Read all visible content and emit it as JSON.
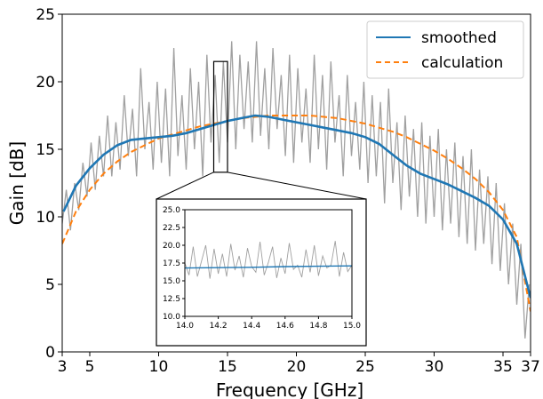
{
  "chart_data": {
    "type": "line",
    "xlabel": "Frequency [GHz]",
    "ylabel": "Gain [dB]",
    "xlim": [
      3,
      37
    ],
    "ylim": [
      0,
      25
    ],
    "xticks": [
      3,
      5,
      10,
      15,
      20,
      25,
      30,
      35,
      37
    ],
    "yticks": [
      0,
      5,
      10,
      15,
      20,
      25
    ],
    "grid": false,
    "legend_position": "top-right",
    "series": [
      {
        "name": "smoothed",
        "color": "#1f77b4",
        "style": "solid",
        "x": [
          3.1,
          4,
          5,
          6,
          7,
          8,
          9,
          10,
          11,
          12,
          13,
          14,
          15,
          16,
          17,
          18,
          19,
          20,
          21,
          22,
          23,
          24,
          25,
          26,
          27,
          28,
          29,
          30,
          31,
          32,
          33,
          34,
          35,
          36,
          37
        ],
        "y": [
          10.4,
          12.3,
          13.6,
          14.6,
          15.3,
          15.7,
          15.8,
          15.9,
          16.0,
          16.2,
          16.5,
          16.8,
          17.1,
          17.3,
          17.5,
          17.4,
          17.2,
          17.0,
          16.8,
          16.6,
          16.4,
          16.2,
          15.9,
          15.4,
          14.6,
          13.8,
          13.2,
          12.8,
          12.4,
          11.9,
          11.4,
          10.8,
          9.8,
          8.0,
          4.0
        ]
      },
      {
        "name": "calculation",
        "color": "#ff7f0e",
        "style": "dashed",
        "x": [
          3,
          4,
          5,
          6,
          7,
          8,
          9,
          10,
          11,
          12,
          13,
          14,
          15,
          16,
          17,
          18,
          19,
          20,
          21,
          22,
          23,
          24,
          25,
          26,
          27,
          28,
          29,
          30,
          31,
          32,
          33,
          34,
          35,
          36,
          37
        ],
        "y": [
          8.0,
          10.4,
          12.0,
          13.2,
          14.1,
          14.8,
          15.3,
          15.8,
          16.1,
          16.4,
          16.7,
          16.9,
          17.1,
          17.3,
          17.4,
          17.5,
          17.5,
          17.5,
          17.5,
          17.4,
          17.3,
          17.1,
          16.9,
          16.6,
          16.3,
          15.9,
          15.4,
          14.9,
          14.3,
          13.6,
          12.8,
          11.8,
          10.5,
          8.5,
          3.0
        ]
      },
      {
        "name": "",
        "color": "#a0a0a0",
        "style": "solid",
        "x": [
          3.0,
          3.3,
          3.6,
          3.9,
          4.2,
          4.5,
          4.8,
          5.1,
          5.4,
          5.7,
          6.0,
          6.3,
          6.6,
          6.9,
          7.2,
          7.5,
          7.8,
          8.1,
          8.4,
          8.7,
          9.0,
          9.3,
          9.6,
          9.9,
          10.2,
          10.5,
          10.8,
          11.1,
          11.4,
          11.7,
          12.0,
          12.3,
          12.6,
          12.9,
          13.2,
          13.5,
          13.8,
          14.1,
          14.4,
          14.7,
          15.0,
          15.3,
          15.6,
          15.9,
          16.2,
          16.5,
          16.8,
          17.1,
          17.4,
          17.7,
          18.0,
          18.3,
          18.6,
          18.9,
          19.2,
          19.5,
          19.8,
          20.1,
          20.4,
          20.7,
          21.0,
          21.3,
          21.6,
          21.9,
          22.2,
          22.5,
          22.8,
          23.1,
          23.4,
          23.7,
          24.0,
          24.3,
          24.6,
          24.9,
          25.2,
          25.5,
          25.8,
          26.1,
          26.4,
          26.7,
          27.0,
          27.3,
          27.6,
          27.9,
          28.2,
          28.5,
          28.8,
          29.1,
          29.4,
          29.7,
          30.0,
          30.3,
          30.6,
          30.9,
          31.2,
          31.5,
          31.8,
          32.1,
          32.4,
          32.7,
          33.0,
          33.3,
          33.6,
          33.9,
          34.2,
          34.5,
          34.8,
          35.1,
          35.4,
          35.7,
          36.0,
          36.3,
          36.6,
          36.9
        ],
        "y": [
          9.5,
          12.0,
          9.0,
          12.5,
          10.5,
          14.0,
          11.5,
          15.5,
          12.0,
          16.0,
          13.0,
          17.5,
          13.0,
          17.0,
          13.5,
          19.0,
          14.5,
          18.0,
          13.0,
          21.0,
          15.0,
          18.5,
          13.5,
          20.0,
          14.0,
          19.5,
          13.0,
          22.5,
          14.5,
          19.0,
          13.5,
          21.0,
          15.0,
          20.0,
          13.0,
          22.0,
          15.5,
          20.5,
          14.0,
          21.5,
          15.5,
          23.0,
          15.0,
          22.0,
          16.5,
          21.5,
          15.5,
          23.0,
          16.0,
          21.0,
          15.0,
          22.5,
          16.5,
          20.5,
          14.5,
          22.0,
          14.0,
          21.0,
          15.5,
          19.5,
          14.0,
          22.0,
          15.0,
          20.5,
          13.5,
          21.5,
          15.5,
          19.0,
          13.0,
          20.5,
          14.5,
          18.5,
          13.5,
          20.0,
          12.5,
          19.0,
          13.0,
          18.5,
          11.0,
          19.5,
          12.5,
          17.0,
          10.5,
          17.5,
          11.5,
          16.5,
          10.0,
          17.0,
          9.5,
          16.0,
          10.0,
          16.5,
          9.0,
          15.0,
          9.5,
          15.5,
          8.5,
          14.5,
          8.0,
          15.0,
          7.5,
          13.5,
          8.0,
          13.0,
          6.5,
          12.5,
          6.0,
          11.0,
          5.0,
          9.5,
          3.5,
          8.0,
          1.0,
          5.0
        ]
      }
    ],
    "inset": {
      "xlim": [
        14.0,
        15.0
      ],
      "ylim": [
        10.0,
        25.0
      ],
      "xticks": [
        "14.0",
        "14.2",
        "14.4",
        "14.6",
        "14.8",
        "15.0"
      ],
      "yticks": [
        "10.0",
        "12.5",
        "15.0",
        "17.5",
        "20.0",
        "22.5",
        "25.0"
      ],
      "raw": {
        "color": "#a0a0a0",
        "x": [
          14.0,
          14.025,
          14.05,
          14.075,
          14.1,
          14.125,
          14.15,
          14.175,
          14.2,
          14.225,
          14.25,
          14.275,
          14.3,
          14.325,
          14.35,
          14.375,
          14.4,
          14.425,
          14.45,
          14.475,
          14.5,
          14.525,
          14.55,
          14.575,
          14.6,
          14.625,
          14.65,
          14.675,
          14.7,
          14.725,
          14.75,
          14.775,
          14.8,
          14.825,
          14.85,
          14.875,
          14.9,
          14.925,
          14.95,
          14.975,
          15.0
        ],
        "y": [
          17.5,
          15.8,
          19.8,
          15.6,
          17.8,
          20.0,
          15.3,
          19.5,
          16.0,
          18.8,
          15.6,
          20.2,
          16.5,
          18.5,
          15.5,
          19.6,
          17.0,
          16.2,
          20.5,
          15.8,
          17.6,
          19.8,
          15.4,
          18.2,
          16.0,
          20.3,
          16.6,
          17.2,
          15.5,
          19.4,
          16.2,
          20.0,
          15.7,
          18.5,
          16.8,
          17.2,
          20.6,
          15.6,
          19.0,
          16.3,
          17.2
        ]
      },
      "smoothed": {
        "color": "#1f77b4",
        "x": [
          14.0,
          14.2,
          14.4,
          14.6,
          14.8,
          15.0
        ],
        "y": [
          16.8,
          16.85,
          16.9,
          17.0,
          17.05,
          17.1
        ]
      }
    }
  }
}
